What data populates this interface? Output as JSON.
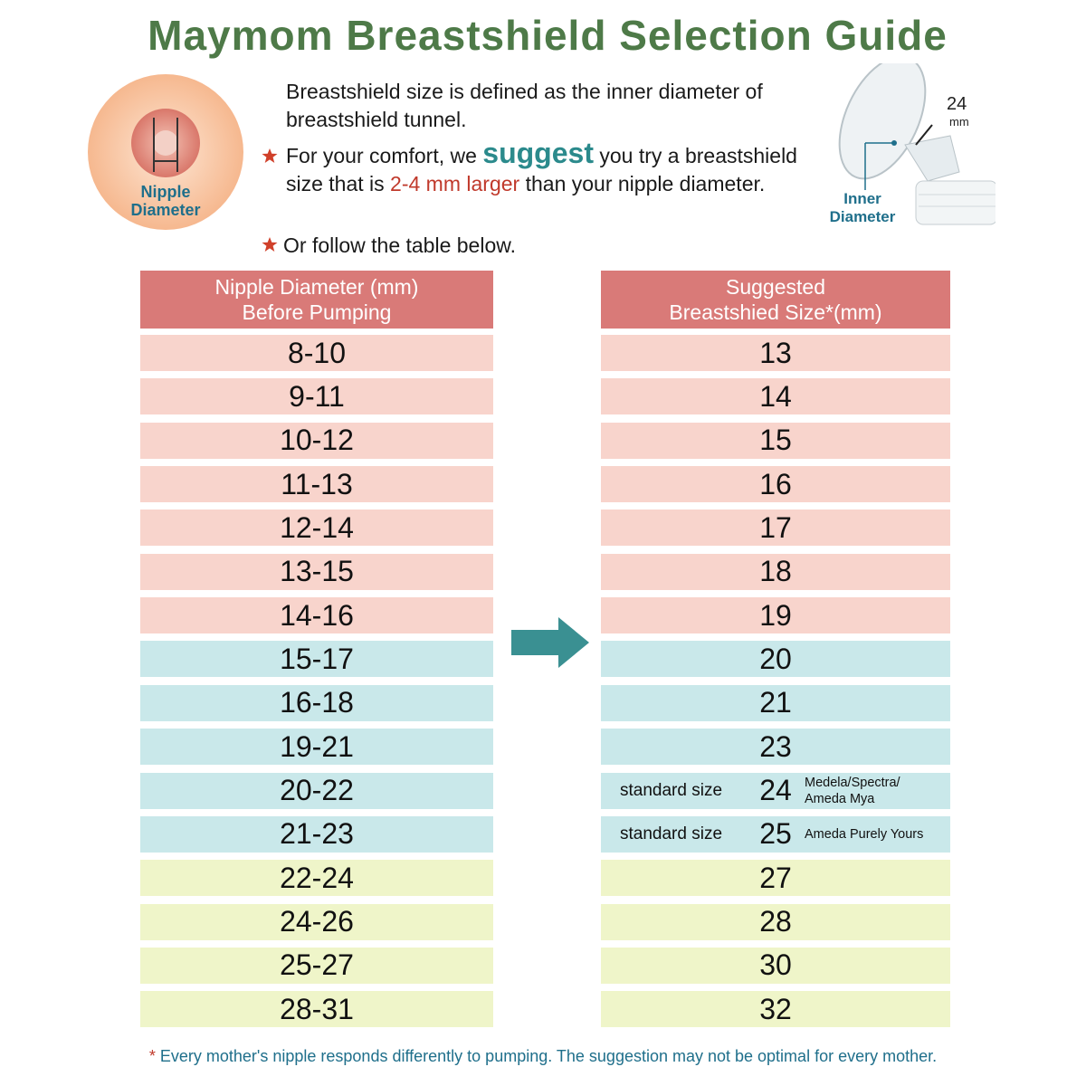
{
  "title": "Maymom Breastshield Selection Guide",
  "nipple_label": "Nipple Diameter",
  "intro": "Breastshield size is defined as the inner diameter of breastshield tunnel.",
  "tip1": {
    "before": "For your comfort, we",
    "emphasis": "suggest",
    "middle": "you try a breastshield size that is",
    "highlight": "2-4 mm larger",
    "after": "than your nipple diameter."
  },
  "tip2": "Or follow the table below.",
  "shield": {
    "size": "24",
    "unit": "mm",
    "label": "Inner Diameter"
  },
  "table": {
    "left_header": [
      "Nipple Diameter (mm)",
      "Before Pumping"
    ],
    "right_header": [
      "Suggested",
      "Breastshied Size*(mm)"
    ],
    "groups": [
      {
        "color": "#f8d4cc",
        "rows": [
          {
            "nipple": "8-10",
            "size": "13"
          },
          {
            "nipple": "9-11",
            "size": "14"
          },
          {
            "nipple": "10-12",
            "size": "15"
          },
          {
            "nipple": "11-13",
            "size": "16"
          },
          {
            "nipple": "12-14",
            "size": "17"
          },
          {
            "nipple": "13-15",
            "size": "18"
          },
          {
            "nipple": "14-16",
            "size": "19"
          }
        ]
      },
      {
        "color": "#c9e8ea",
        "rows": [
          {
            "nipple": "15-17",
            "size": "20"
          },
          {
            "nipple": "16-18",
            "size": "21"
          },
          {
            "nipple": "19-21",
            "size": "23"
          },
          {
            "nipple": "20-22",
            "size": "24",
            "label": "standard size",
            "brand": [
              "Medela/Spectra/",
              "Ameda Mya"
            ]
          },
          {
            "nipple": "21-23",
            "size": "25",
            "label": "standard size",
            "brand": [
              "Ameda Purely Yours"
            ]
          }
        ]
      },
      {
        "color": "#eff5c9",
        "rows": [
          {
            "nipple": "22-24",
            "size": "27"
          },
          {
            "nipple": "24-26",
            "size": "28"
          },
          {
            "nipple": "25-27",
            "size": "30"
          },
          {
            "nipple": "28-31",
            "size": "32"
          }
        ]
      }
    ]
  },
  "footnote": {
    "mark": "*",
    "text": "Every mother's nipple responds differently to pumping. The suggestion may not be optimal for every mother."
  }
}
